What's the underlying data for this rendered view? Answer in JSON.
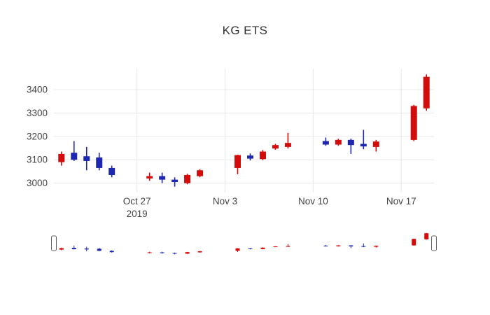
{
  "colors": {
    "up": "#d20b0b",
    "down": "#1e27b0",
    "grid": "#e8e8e8",
    "tick_text": "#444444",
    "title_text": "#333333",
    "handle_border": "#666666"
  },
  "chart_data": {
    "type": "candlestick",
    "title": "KG ETS",
    "ylim": [
      2960,
      3490
    ],
    "y_ticks": [
      3000,
      3100,
      3200,
      3300,
      3400
    ],
    "x_ticks": [
      {
        "date": "2019-10-27",
        "label": "Oct 27",
        "sublabel": "2019"
      },
      {
        "date": "2019-11-03",
        "label": "Nov 3"
      },
      {
        "date": "2019-11-10",
        "label": "Nov 10"
      },
      {
        "date": "2019-11-17",
        "label": "Nov 17"
      }
    ],
    "legend": "none",
    "grid": true,
    "rangeslider": true,
    "candles": [
      {
        "date": "2019-10-21",
        "open": 3090,
        "high": 3135,
        "low": 3075,
        "close": 3125
      },
      {
        "date": "2019-10-22",
        "open": 3130,
        "high": 3180,
        "low": 3095,
        "close": 3100
      },
      {
        "date": "2019-10-23",
        "open": 3115,
        "high": 3155,
        "low": 3055,
        "close": 3095
      },
      {
        "date": "2019-10-24",
        "open": 3110,
        "high": 3130,
        "low": 3055,
        "close": 3065
      },
      {
        "date": "2019-10-25",
        "open": 3065,
        "high": 3075,
        "low": 3025,
        "close": 3035
      },
      {
        "date": "2019-10-28",
        "open": 3020,
        "high": 3045,
        "low": 3010,
        "close": 3030
      },
      {
        "date": "2019-10-29",
        "open": 3030,
        "high": 3045,
        "low": 3000,
        "close": 3015
      },
      {
        "date": "2019-10-30",
        "open": 3015,
        "high": 3025,
        "low": 2985,
        "close": 3005
      },
      {
        "date": "2019-10-31",
        "open": 3000,
        "high": 3040,
        "low": 2995,
        "close": 3035
      },
      {
        "date": "2019-11-01",
        "open": 3030,
        "high": 3060,
        "low": 3025,
        "close": 3055
      },
      {
        "date": "2019-11-04",
        "open": 3065,
        "high": 3122,
        "low": 3038,
        "close": 3120
      },
      {
        "date": "2019-11-05",
        "open": 3118,
        "high": 3127,
        "low": 3097,
        "close": 3105
      },
      {
        "date": "2019-11-06",
        "open": 3103,
        "high": 3142,
        "low": 3098,
        "close": 3135
      },
      {
        "date": "2019-11-07",
        "open": 3148,
        "high": 3168,
        "low": 3143,
        "close": 3163
      },
      {
        "date": "2019-11-08",
        "open": 3155,
        "high": 3215,
        "low": 3148,
        "close": 3172
      },
      {
        "date": "2019-11-11",
        "open": 3180,
        "high": 3195,
        "low": 3160,
        "close": 3165
      },
      {
        "date": "2019-11-12",
        "open": 3165,
        "high": 3190,
        "low": 3160,
        "close": 3185
      },
      {
        "date": "2019-11-13",
        "open": 3185,
        "high": 3190,
        "low": 3125,
        "close": 3163
      },
      {
        "date": "2019-11-14",
        "open": 3168,
        "high": 3228,
        "low": 3145,
        "close": 3157
      },
      {
        "date": "2019-11-15",
        "open": 3155,
        "high": 3185,
        "low": 3135,
        "close": 3178
      },
      {
        "date": "2019-11-18",
        "open": 3185,
        "high": 3335,
        "low": 3180,
        "close": 3330
      },
      {
        "date": "2019-11-19",
        "open": 3320,
        "high": 3465,
        "low": 3310,
        "close": 3455
      }
    ]
  }
}
